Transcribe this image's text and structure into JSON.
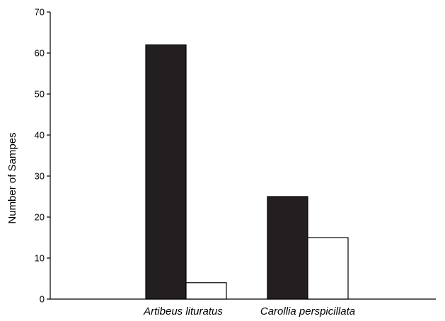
{
  "chart_data": {
    "type": "bar",
    "title": "",
    "xlabel": "",
    "ylabel": "Number of Sampes",
    "categories": [
      "Artibeus lituratus",
      "Carollia perspicillata"
    ],
    "series": [
      {
        "values": [
          62,
          25
        ],
        "color": "#231f20"
      },
      {
        "values": [
          4,
          15
        ],
        "color": "#ffffff"
      }
    ],
    "ylim": [
      0,
      70
    ],
    "yticks": [
      "0",
      "10",
      "20",
      "30",
      "40",
      "50",
      "60",
      "70"
    ],
    "grid": false
  }
}
